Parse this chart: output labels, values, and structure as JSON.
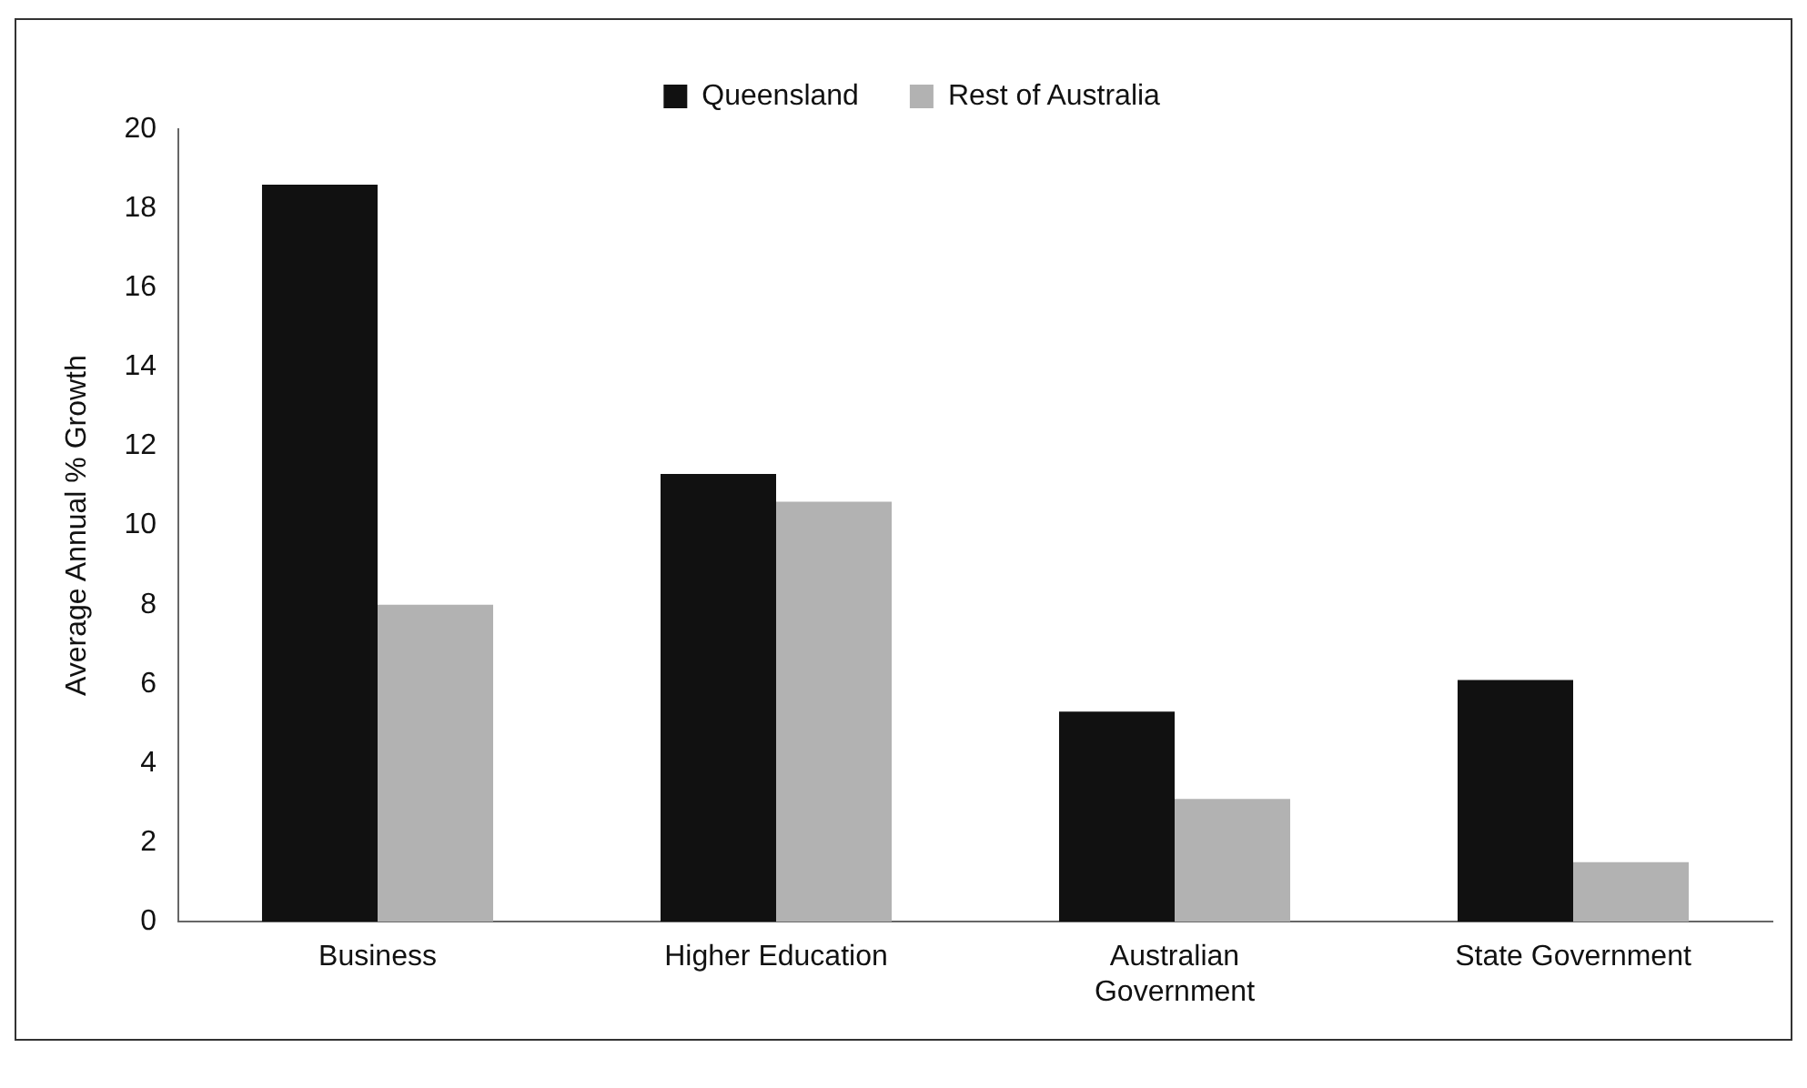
{
  "chart_data": {
    "type": "bar",
    "ylabel": "Average Annual % Growth",
    "categories": [
      "Business",
      "Higher Education",
      "Australian Government",
      "State Government"
    ],
    "series": [
      {
        "name": "Queensland",
        "color": "#111111",
        "values": [
          18.6,
          11.3,
          5.3,
          6.1
        ]
      },
      {
        "name": "Rest of Australia",
        "color": "#b2b2b2",
        "values": [
          8.0,
          10.6,
          3.1,
          1.5
        ]
      }
    ],
    "ylim": [
      0,
      20
    ],
    "yticks": [
      0,
      2,
      4,
      6,
      8,
      10,
      12,
      14,
      16,
      18,
      20
    ],
    "grid": false,
    "legend": "top"
  }
}
